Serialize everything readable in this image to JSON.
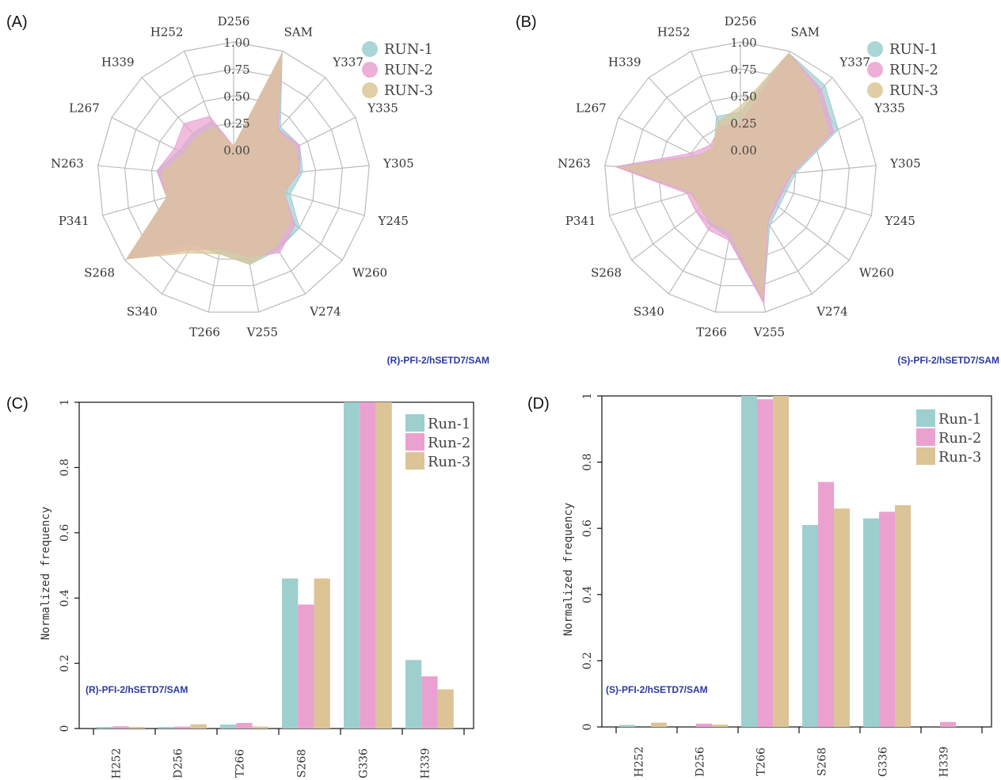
{
  "colors": {
    "run1": "#9ecfcf",
    "run2": "#eaa1cf",
    "run3": "#dcc497"
  },
  "chart_data": [
    {
      "panel": "(A)",
      "type": "radar",
      "caption": "(R)-PFI-2/hSETD7/SAM",
      "axes": [
        "D256",
        "SAM",
        "Y337",
        "Y335",
        "Y305",
        "Y245",
        "W260",
        "V274",
        "V255",
        "T266",
        "S340",
        "S268",
        "P341",
        "N263",
        "L267",
        "H339",
        "H252"
      ],
      "ring_labels": [
        "0.00",
        "0.25",
        "0.50",
        "0.75",
        "1.00"
      ],
      "legend": [
        "RUN-1",
        "RUN-2",
        "RUN-3"
      ],
      "series": [
        {
          "name": "RUN-1",
          "values": [
            0.03,
            0.98,
            0.38,
            0.42,
            0.38,
            0.28,
            0.5,
            0.52,
            0.55,
            0.45,
            0.45,
            0.98,
            0.38,
            0.45,
            0.3,
            0.3,
            0.3
          ]
        },
        {
          "name": "RUN-2",
          "values": [
            0.03,
            0.98,
            0.35,
            0.42,
            0.35,
            0.22,
            0.45,
            0.55,
            0.48,
            0.4,
            0.52,
            0.98,
            0.38,
            0.45,
            0.35,
            0.42,
            0.35
          ]
        },
        {
          "name": "RUN-3",
          "values": [
            0.03,
            0.98,
            0.33,
            0.38,
            0.33,
            0.22,
            0.4,
            0.48,
            0.55,
            0.45,
            0.55,
            0.98,
            0.38,
            0.4,
            0.25,
            0.25,
            0.25
          ]
        }
      ]
    },
    {
      "panel": "(B)",
      "type": "radar",
      "caption": "(S)-PFI-2/hSETD7/SAM",
      "axes": [
        "D256",
        "SAM",
        "Y337",
        "Y335",
        "Y305",
        "Y245",
        "W260",
        "V274",
        "V255",
        "T266",
        "S340",
        "S268",
        "P341",
        "N263",
        "L267",
        "H339",
        "H252"
      ],
      "ring_labels": [
        "0.00",
        "0.25",
        "0.50",
        "0.75",
        "1.00"
      ],
      "legend": [
        "RUN-1",
        "RUN-2",
        "RUN-3"
      ],
      "series": [
        {
          "name": "RUN-1",
          "values": [
            0.35,
            0.98,
            0.9,
            0.75,
            0.25,
            0.18,
            0.18,
            0.25,
            0.9,
            0.3,
            0.25,
            0.2,
            0.22,
            0.9,
            0.2,
            0.1,
            0.35
          ]
        },
        {
          "name": "RUN-2",
          "values": [
            0.25,
            0.98,
            0.85,
            0.7,
            0.22,
            0.15,
            0.15,
            0.22,
            0.92,
            0.32,
            0.3,
            0.25,
            0.25,
            0.9,
            0.25,
            0.15,
            0.25
          ]
        },
        {
          "name": "RUN-3",
          "values": [
            0.4,
            0.98,
            0.8,
            0.65,
            0.2,
            0.12,
            0.12,
            0.2,
            0.85,
            0.25,
            0.22,
            0.2,
            0.2,
            0.85,
            0.18,
            0.12,
            0.3
          ]
        }
      ]
    },
    {
      "panel": "(C)",
      "type": "bar",
      "caption": "(R)-PFI-2/hSETD7/SAM",
      "ylabel": "Normalized frequency",
      "ylim": [
        0,
        1
      ],
      "yticks": [
        "0",
        "0.2",
        "0.4",
        "0.6",
        "0.8",
        "1"
      ],
      "categories": [
        "H252",
        "D256",
        "T266",
        "S268",
        "G336",
        "H339"
      ],
      "legend": [
        "Run-1",
        "Run-2",
        "Run-3"
      ],
      "series": [
        {
          "name": "Run-1",
          "values": [
            0.005,
            0.005,
            0.012,
            0.46,
            1.0,
            0.21
          ]
        },
        {
          "name": "Run-2",
          "values": [
            0.007,
            0.006,
            0.017,
            0.38,
            1.0,
            0.16
          ]
        },
        {
          "name": "Run-3",
          "values": [
            0.005,
            0.013,
            0.006,
            0.46,
            1.0,
            0.12
          ]
        }
      ]
    },
    {
      "panel": "(D)",
      "type": "bar",
      "caption": "(S)-PFI-2/hSETD7/SAM",
      "ylabel": "Normalized frequency",
      "ylim": [
        0,
        1
      ],
      "yticks": [
        "0",
        "0.2",
        "0.4",
        "0.6",
        "0.8",
        "1"
      ],
      "categories": [
        "H252",
        "D256",
        "T266",
        "S268",
        "G336",
        "H339"
      ],
      "legend": [
        "Run-1",
        "Run-2",
        "Run-3"
      ],
      "series": [
        {
          "name": "Run-1",
          "values": [
            0.006,
            0.0,
            1.0,
            0.61,
            0.63,
            0.0
          ]
        },
        {
          "name": "Run-2",
          "values": [
            0.0,
            0.01,
            0.99,
            0.74,
            0.65,
            0.015
          ]
        },
        {
          "name": "Run-3",
          "values": [
            0.013,
            0.007,
            1.0,
            0.66,
            0.67,
            0.0
          ]
        }
      ]
    }
  ]
}
